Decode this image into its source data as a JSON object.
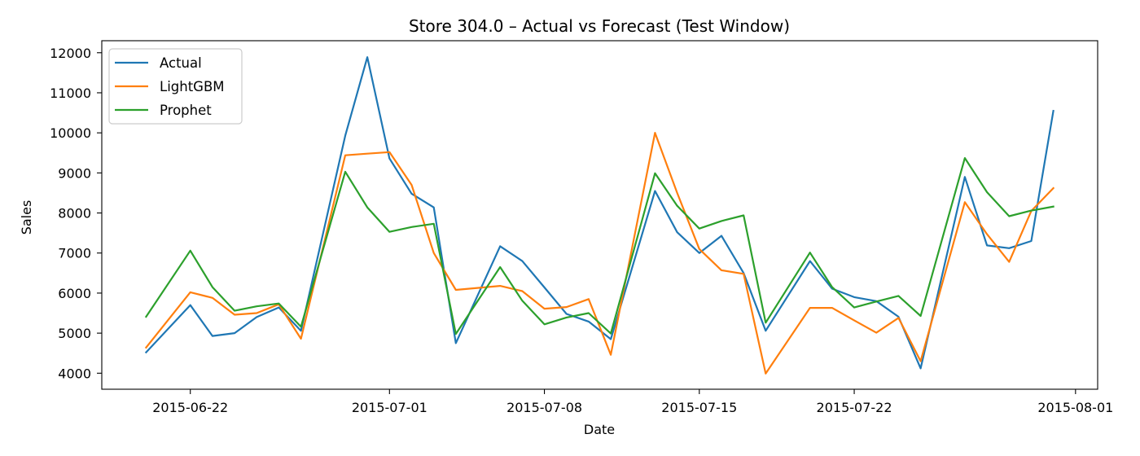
{
  "chart_data": {
    "type": "line",
    "title": "Store 304.0 – Actual vs Forecast (Test Window)",
    "xlabel": "Date",
    "ylabel": "Sales",
    "x": [
      "2015-06-20",
      "2015-06-22",
      "2015-06-23",
      "2015-06-24",
      "2015-06-25",
      "2015-06-26",
      "2015-06-27",
      "2015-06-29",
      "2015-06-30",
      "2015-07-01",
      "2015-07-02",
      "2015-07-03",
      "2015-07-04",
      "2015-07-06",
      "2015-07-07",
      "2015-07-08",
      "2015-07-09",
      "2015-07-10",
      "2015-07-11",
      "2015-07-13",
      "2015-07-14",
      "2015-07-15",
      "2015-07-16",
      "2015-07-17",
      "2015-07-18",
      "2015-07-20",
      "2015-07-21",
      "2015-07-22",
      "2015-07-23",
      "2015-07-24",
      "2015-07-25",
      "2015-07-27",
      "2015-07-28",
      "2015-07-29",
      "2015-07-30",
      "2015-07-31"
    ],
    "series": [
      {
        "name": "Actual",
        "color": "#1f77b4",
        "values": [
          4520,
          5700,
          4930,
          5000,
          5400,
          5640,
          5060,
          9930,
          11890,
          9360,
          8480,
          8140,
          4750,
          7170,
          6800,
          6140,
          5480,
          5290,
          4850,
          8550,
          7520,
          7000,
          7430,
          6500,
          5060,
          6800,
          6110,
          5900,
          5800,
          5410,
          4120,
          8900,
          7190,
          7120,
          7300,
          10550
        ]
      },
      {
        "name": "LightGBM",
        "color": "#ff7f0e",
        "values": [
          4640,
          6020,
          5880,
          5460,
          5500,
          5720,
          4860,
          9440,
          9480,
          9520,
          8700,
          7000,
          6080,
          6180,
          6050,
          5610,
          5650,
          5850,
          4460,
          10000,
          8500,
          7100,
          6570,
          6480,
          3990,
          5630,
          5630,
          5320,
          5010,
          5380,
          4300,
          8270,
          7470,
          6780,
          8050,
          8620
        ]
      },
      {
        "name": "Prophet",
        "color": "#2ca02c",
        "values": [
          5410,
          7060,
          6150,
          5560,
          5670,
          5740,
          5160,
          9030,
          8140,
          7530,
          7650,
          7730,
          4980,
          6650,
          5810,
          5220,
          5390,
          5500,
          4990,
          8990,
          8180,
          7610,
          7800,
          7940,
          5260,
          7010,
          6150,
          5640,
          5790,
          5930,
          5430,
          9370,
          8520,
          7920,
          8060,
          8160
        ]
      }
    ],
    "xlim": [
      "2015-06-18",
      "2015-08-02"
    ],
    "xticks": [
      "2015-06-22",
      "2015-07-01",
      "2015-07-08",
      "2015-07-15",
      "2015-07-22",
      "2015-08-01"
    ],
    "ylim": [
      3600,
      12300
    ],
    "yticks": [
      4000,
      5000,
      6000,
      7000,
      8000,
      9000,
      10000,
      11000,
      12000
    ],
    "grid": false,
    "legend_position": "top-left"
  }
}
